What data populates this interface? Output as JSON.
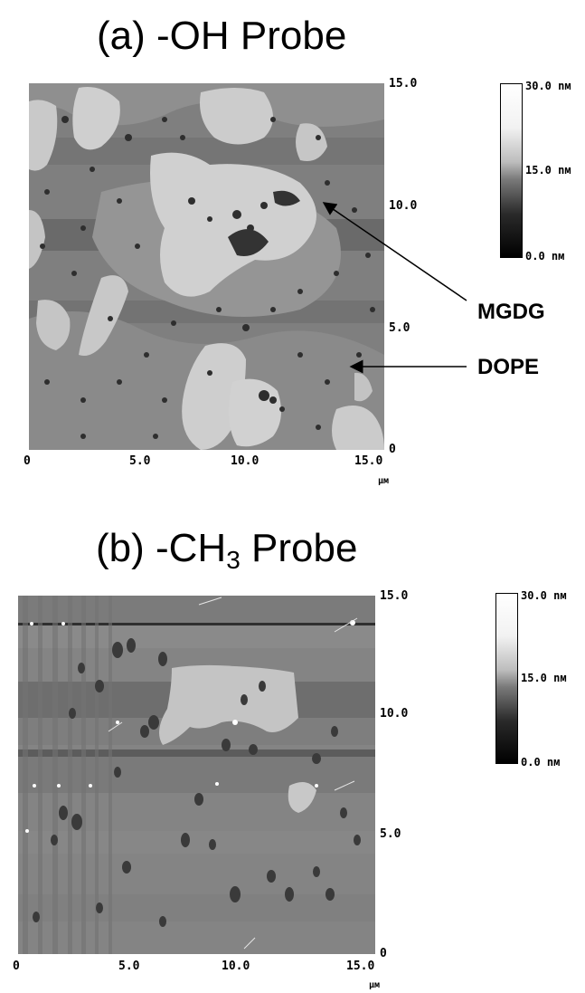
{
  "panel_a": {
    "title_prefix": "(a) -OH Probe",
    "x_ticks": [
      "0",
      "5.0",
      "10.0",
      "15.0"
    ],
    "y_ticks": [
      "15.0",
      "10.0",
      "5.0",
      "0"
    ],
    "x_unit": "µм",
    "colorbar": {
      "max": "30.0 nм",
      "mid": "15.0 nм",
      "min": "0.0 nм"
    },
    "annotations": [
      "MGDG",
      "DOPE"
    ]
  },
  "panel_b": {
    "title_prefix": "(b) -CH",
    "title_subscript": "3",
    "title_suffix": " Probe",
    "x_ticks": [
      "0",
      "5.0",
      "10.0",
      "15.0"
    ],
    "y_ticks": [
      "15.0",
      "10.0",
      "5.0",
      "0"
    ],
    "x_unit": "µм",
    "colorbar": {
      "max": "30.0 nм",
      "mid": "15.0 nм",
      "min": "0.0 nм"
    }
  },
  "colors": {
    "bright_domain": "#cdcdcd",
    "mid_domain": "#8c8c8c",
    "dark_domain": "#5a5a5a",
    "hole": "#2a2a2a"
  }
}
